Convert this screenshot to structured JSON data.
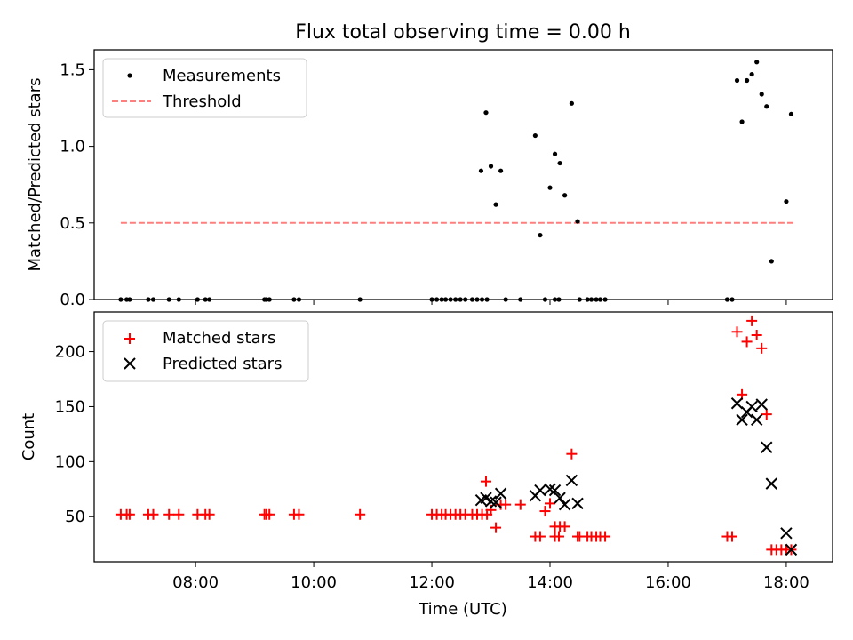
{
  "title": "Flux total observing time = 0.00 h",
  "xlabel": "Time (UTC)",
  "colors": {
    "measurement": "#000000",
    "threshold": "#ff7f7f",
    "matched": "#ff0000",
    "predicted": "#000000"
  },
  "chart_data": [
    {
      "type": "scatter",
      "title": "Flux total observing time = 0.00 h",
      "xlabel": "",
      "ylabel": "Matched/Predicted stars",
      "xlim": [
        "06:17",
        "18:47"
      ],
      "ylim": [
        0,
        1.63
      ],
      "yticks": [
        0.0,
        0.5,
        1.0,
        1.5
      ],
      "ytick_labels": [
        "0.0",
        "0.5",
        "1.0",
        "1.5"
      ],
      "legend": {
        "position": "top-left",
        "entries": [
          "Measurements",
          "Threshold"
        ]
      },
      "series": [
        {
          "name": "Measurements",
          "marker": "dot",
          "points": [
            [
              "06:44",
              0
            ],
            [
              "06:50",
              0
            ],
            [
              "06:53",
              0
            ],
            [
              "07:12",
              0
            ],
            [
              "07:17",
              0
            ],
            [
              "07:33",
              0
            ],
            [
              "07:43",
              0
            ],
            [
              "08:02",
              0
            ],
            [
              "08:10",
              0
            ],
            [
              "08:14",
              0
            ],
            [
              "09:10",
              0
            ],
            [
              "09:12",
              0
            ],
            [
              "09:15",
              0
            ],
            [
              "09:40",
              0
            ],
            [
              "09:45",
              0
            ],
            [
              "10:47",
              0
            ],
            [
              "12:00",
              0
            ],
            [
              "12:05",
              0
            ],
            [
              "12:10",
              0
            ],
            [
              "12:14",
              0
            ],
            [
              "12:19",
              0
            ],
            [
              "12:24",
              0
            ],
            [
              "12:29",
              0
            ],
            [
              "12:34",
              0
            ],
            [
              "12:41",
              0
            ],
            [
              "12:46",
              0
            ],
            [
              "12:51",
              0
            ],
            [
              "12:56",
              0
            ],
            [
              "12:50",
              0.84
            ],
            [
              "12:55",
              1.22
            ],
            [
              "13:00",
              0.87
            ],
            [
              "13:05",
              0.62
            ],
            [
              "13:10",
              0.84
            ],
            [
              "13:15",
              0
            ],
            [
              "13:30",
              0
            ],
            [
              "13:45",
              1.07
            ],
            [
              "13:50",
              0.42
            ],
            [
              "13:55",
              0
            ],
            [
              "14:00",
              0.73
            ],
            [
              "14:05",
              0.95
            ],
            [
              "14:10",
              0.89
            ],
            [
              "14:15",
              0.68
            ],
            [
              "14:05",
              0
            ],
            [
              "14:09",
              0
            ],
            [
              "14:22",
              1.28
            ],
            [
              "14:28",
              0.51
            ],
            [
              "14:30",
              0
            ],
            [
              "14:38",
              0
            ],
            [
              "14:42",
              0
            ],
            [
              "14:47",
              0
            ],
            [
              "14:51",
              0
            ],
            [
              "14:56",
              0
            ],
            [
              "17:00",
              0
            ],
            [
              "17:05",
              0
            ],
            [
              "17:10",
              1.43
            ],
            [
              "17:15",
              1.16
            ],
            [
              "17:20",
              1.43
            ],
            [
              "17:25",
              1.47
            ],
            [
              "17:30",
              1.55
            ],
            [
              "17:35",
              1.34
            ],
            [
              "17:40",
              1.26
            ],
            [
              "17:45",
              0.25
            ],
            [
              "18:00",
              0.64
            ],
            [
              "18:05",
              1.21
            ]
          ]
        },
        {
          "name": "Threshold",
          "style": "dashed",
          "points": [
            [
              "06:44",
              0.5
            ],
            [
              "18:09",
              0.5
            ]
          ]
        }
      ]
    },
    {
      "type": "scatter",
      "xlabel": "Time (UTC)",
      "ylabel": "Count",
      "xlim": [
        "06:17",
        "18:47"
      ],
      "ylim": [
        9,
        236
      ],
      "xticks": [
        "08:00",
        "10:00",
        "12:00",
        "14:00",
        "16:00",
        "18:00"
      ],
      "yticks": [
        50,
        100,
        150,
        200
      ],
      "ytick_labels": [
        "50",
        "100",
        "150",
        "200"
      ],
      "legend": {
        "position": "top-left",
        "entries": [
          "Matched stars",
          "Predicted stars"
        ]
      },
      "series": [
        {
          "name": "Matched stars",
          "marker": "plus",
          "points": [
            [
              "06:44",
              52
            ],
            [
              "06:50",
              52
            ],
            [
              "06:53",
              52
            ],
            [
              "07:12",
              52
            ],
            [
              "07:17",
              52
            ],
            [
              "07:33",
              52
            ],
            [
              "07:43",
              52
            ],
            [
              "08:02",
              52
            ],
            [
              "08:10",
              52
            ],
            [
              "08:14",
              52
            ],
            [
              "09:10",
              52
            ],
            [
              "09:12",
              52
            ],
            [
              "09:15",
              52
            ],
            [
              "09:40",
              52
            ],
            [
              "09:45",
              52
            ],
            [
              "10:47",
              52
            ],
            [
              "12:00",
              52
            ],
            [
              "12:05",
              52
            ],
            [
              "12:10",
              52
            ],
            [
              "12:14",
              52
            ],
            [
              "12:19",
              52
            ],
            [
              "12:24",
              52
            ],
            [
              "12:29",
              52
            ],
            [
              "12:34",
              52
            ],
            [
              "12:41",
              52
            ],
            [
              "12:46",
              52
            ],
            [
              "12:51",
              52
            ],
            [
              "12:56",
              52
            ],
            [
              "12:55",
              82
            ],
            [
              "13:00",
              56
            ],
            [
              "13:05",
              40
            ],
            [
              "13:10",
              61
            ],
            [
              "13:15",
              61
            ],
            [
              "13:30",
              61
            ],
            [
              "13:45",
              32
            ],
            [
              "13:50",
              32
            ],
            [
              "13:55",
              55
            ],
            [
              "14:00",
              62
            ],
            [
              "14:05",
              41
            ],
            [
              "14:10",
              41
            ],
            [
              "14:15",
              41
            ],
            [
              "14:05",
              32
            ],
            [
              "14:09",
              32
            ],
            [
              "14:22",
              107
            ],
            [
              "14:28",
              32
            ],
            [
              "14:30",
              32
            ],
            [
              "14:38",
              32
            ],
            [
              "14:42",
              32
            ],
            [
              "14:47",
              32
            ],
            [
              "14:51",
              32
            ],
            [
              "14:56",
              32
            ],
            [
              "17:00",
              32
            ],
            [
              "17:05",
              32
            ],
            [
              "17:10",
              218
            ],
            [
              "17:15",
              161
            ],
            [
              "17:20",
              209
            ],
            [
              "17:25",
              228
            ],
            [
              "17:30",
              215
            ],
            [
              "17:35",
              203
            ],
            [
              "17:40",
              143
            ],
            [
              "17:45",
              20
            ],
            [
              "17:50",
              20
            ],
            [
              "17:55",
              20
            ],
            [
              "18:00",
              20
            ],
            [
              "18:05",
              20
            ]
          ]
        },
        {
          "name": "Predicted stars",
          "marker": "x",
          "points": [
            [
              "12:50",
              65
            ],
            [
              "12:55",
              67
            ],
            [
              "13:00",
              64
            ],
            [
              "13:05",
              63
            ],
            [
              "13:10",
              71
            ],
            [
              "13:45",
              69
            ],
            [
              "13:50",
              74
            ],
            [
              "14:00",
              75
            ],
            [
              "14:05",
              74
            ],
            [
              "14:10",
              67
            ],
            [
              "14:15",
              61
            ],
            [
              "14:22",
              83
            ],
            [
              "14:28",
              62
            ],
            [
              "17:10",
              153
            ],
            [
              "17:15",
              138
            ],
            [
              "17:20",
              145
            ],
            [
              "17:25",
              150
            ],
            [
              "17:30",
              138
            ],
            [
              "17:35",
              152
            ],
            [
              "17:40",
              113
            ],
            [
              "17:45",
              80
            ],
            [
              "18:00",
              35
            ],
            [
              "18:05",
              20
            ]
          ]
        }
      ]
    }
  ]
}
